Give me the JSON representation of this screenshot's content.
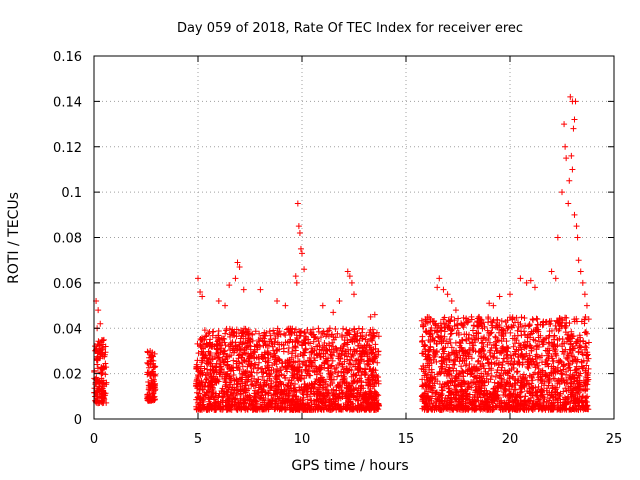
{
  "chart_data": {
    "type": "scatter",
    "title": "Day 059 of 2018, Rate Of TEC Index for receiver erec",
    "xlabel": "GPS time / hours",
    "ylabel": "ROTI / TECUs",
    "xlim": [
      0,
      25
    ],
    "ylim": [
      0,
      0.16
    ],
    "x_ticks": [
      0,
      5,
      10,
      15,
      20,
      25
    ],
    "x_tick_labels": [
      "0",
      "5",
      "10",
      "15",
      "20",
      "25"
    ],
    "y_ticks": [
      0,
      0.02,
      0.04,
      0.06,
      0.08,
      0.1,
      0.12,
      0.14,
      0.16
    ],
    "y_tick_labels": [
      "0",
      "0.02",
      "0.04",
      "0.06",
      "0.08",
      "0.1",
      "0.12",
      "0.14",
      "0.16"
    ],
    "grid": true,
    "marker": "+",
    "series": [
      {
        "name": "ROTI",
        "color": "#ff0000",
        "segments": [
          {
            "x_range": [
              0.0,
              0.6
            ],
            "y_min": 0.007,
            "y_max": 0.035,
            "y_peak": 0.052
          },
          {
            "x_range": [
              2.55,
              2.95
            ],
            "y_min": 0.008,
            "y_max": 0.03,
            "y_peak": 0.03
          },
          {
            "x_range": [
              4.9,
              13.7
            ],
            "y_min": 0.004,
            "y_max": 0.04,
            "y_peak": 0.095
          },
          {
            "x_range": [
              15.75,
              23.8
            ],
            "y_min": 0.004,
            "y_max": 0.045,
            "y_peak": 0.142
          }
        ],
        "points": [
          [
            0.1,
            0.052
          ],
          [
            0.2,
            0.048
          ],
          [
            0.3,
            0.042
          ],
          [
            0.15,
            0.04
          ],
          [
            2.7,
            0.03
          ],
          [
            2.8,
            0.028
          ],
          [
            2.65,
            0.027
          ],
          [
            5.0,
            0.062
          ],
          [
            5.1,
            0.056
          ],
          [
            5.2,
            0.054
          ],
          [
            6.0,
            0.052
          ],
          [
            6.3,
            0.05
          ],
          [
            6.5,
            0.059
          ],
          [
            6.8,
            0.062
          ],
          [
            6.9,
            0.069
          ],
          [
            7.0,
            0.067
          ],
          [
            7.2,
            0.057
          ],
          [
            8.0,
            0.057
          ],
          [
            8.8,
            0.052
          ],
          [
            9.2,
            0.05
          ],
          [
            9.8,
            0.095
          ],
          [
            9.85,
            0.085
          ],
          [
            9.9,
            0.082
          ],
          [
            9.95,
            0.075
          ],
          [
            10.0,
            0.073
          ],
          [
            9.7,
            0.063
          ],
          [
            9.75,
            0.06
          ],
          [
            10.1,
            0.066
          ],
          [
            11.0,
            0.05
          ],
          [
            11.5,
            0.047
          ],
          [
            11.8,
            0.052
          ],
          [
            12.2,
            0.065
          ],
          [
            12.3,
            0.063
          ],
          [
            12.4,
            0.06
          ],
          [
            12.5,
            0.055
          ],
          [
            13.3,
            0.045
          ],
          [
            13.5,
            0.046
          ],
          [
            16.5,
            0.058
          ],
          [
            16.6,
            0.062
          ],
          [
            16.8,
            0.057
          ],
          [
            17.0,
            0.055
          ],
          [
            17.2,
            0.052
          ],
          [
            17.4,
            0.048
          ],
          [
            18.5,
            0.045
          ],
          [
            19.0,
            0.051
          ],
          [
            19.2,
            0.05
          ],
          [
            19.5,
            0.054
          ],
          [
            20.0,
            0.055
          ],
          [
            20.5,
            0.062
          ],
          [
            20.8,
            0.06
          ],
          [
            21.0,
            0.061
          ],
          [
            21.2,
            0.058
          ],
          [
            22.0,
            0.065
          ],
          [
            22.2,
            0.062
          ],
          [
            22.3,
            0.08
          ],
          [
            22.5,
            0.1
          ],
          [
            22.6,
            0.13
          ],
          [
            22.65,
            0.12
          ],
          [
            22.7,
            0.115
          ],
          [
            22.8,
            0.095
          ],
          [
            22.85,
            0.105
          ],
          [
            22.9,
            0.142
          ],
          [
            23.0,
            0.14
          ],
          [
            23.05,
            0.128
          ],
          [
            23.1,
            0.132
          ],
          [
            23.15,
            0.14
          ],
          [
            22.95,
            0.116
          ],
          [
            23.0,
            0.11
          ],
          [
            23.1,
            0.09
          ],
          [
            23.2,
            0.085
          ],
          [
            23.25,
            0.08
          ],
          [
            23.3,
            0.07
          ],
          [
            23.4,
            0.065
          ],
          [
            23.5,
            0.06
          ],
          [
            23.6,
            0.055
          ],
          [
            23.7,
            0.05
          ]
        ]
      }
    ]
  }
}
